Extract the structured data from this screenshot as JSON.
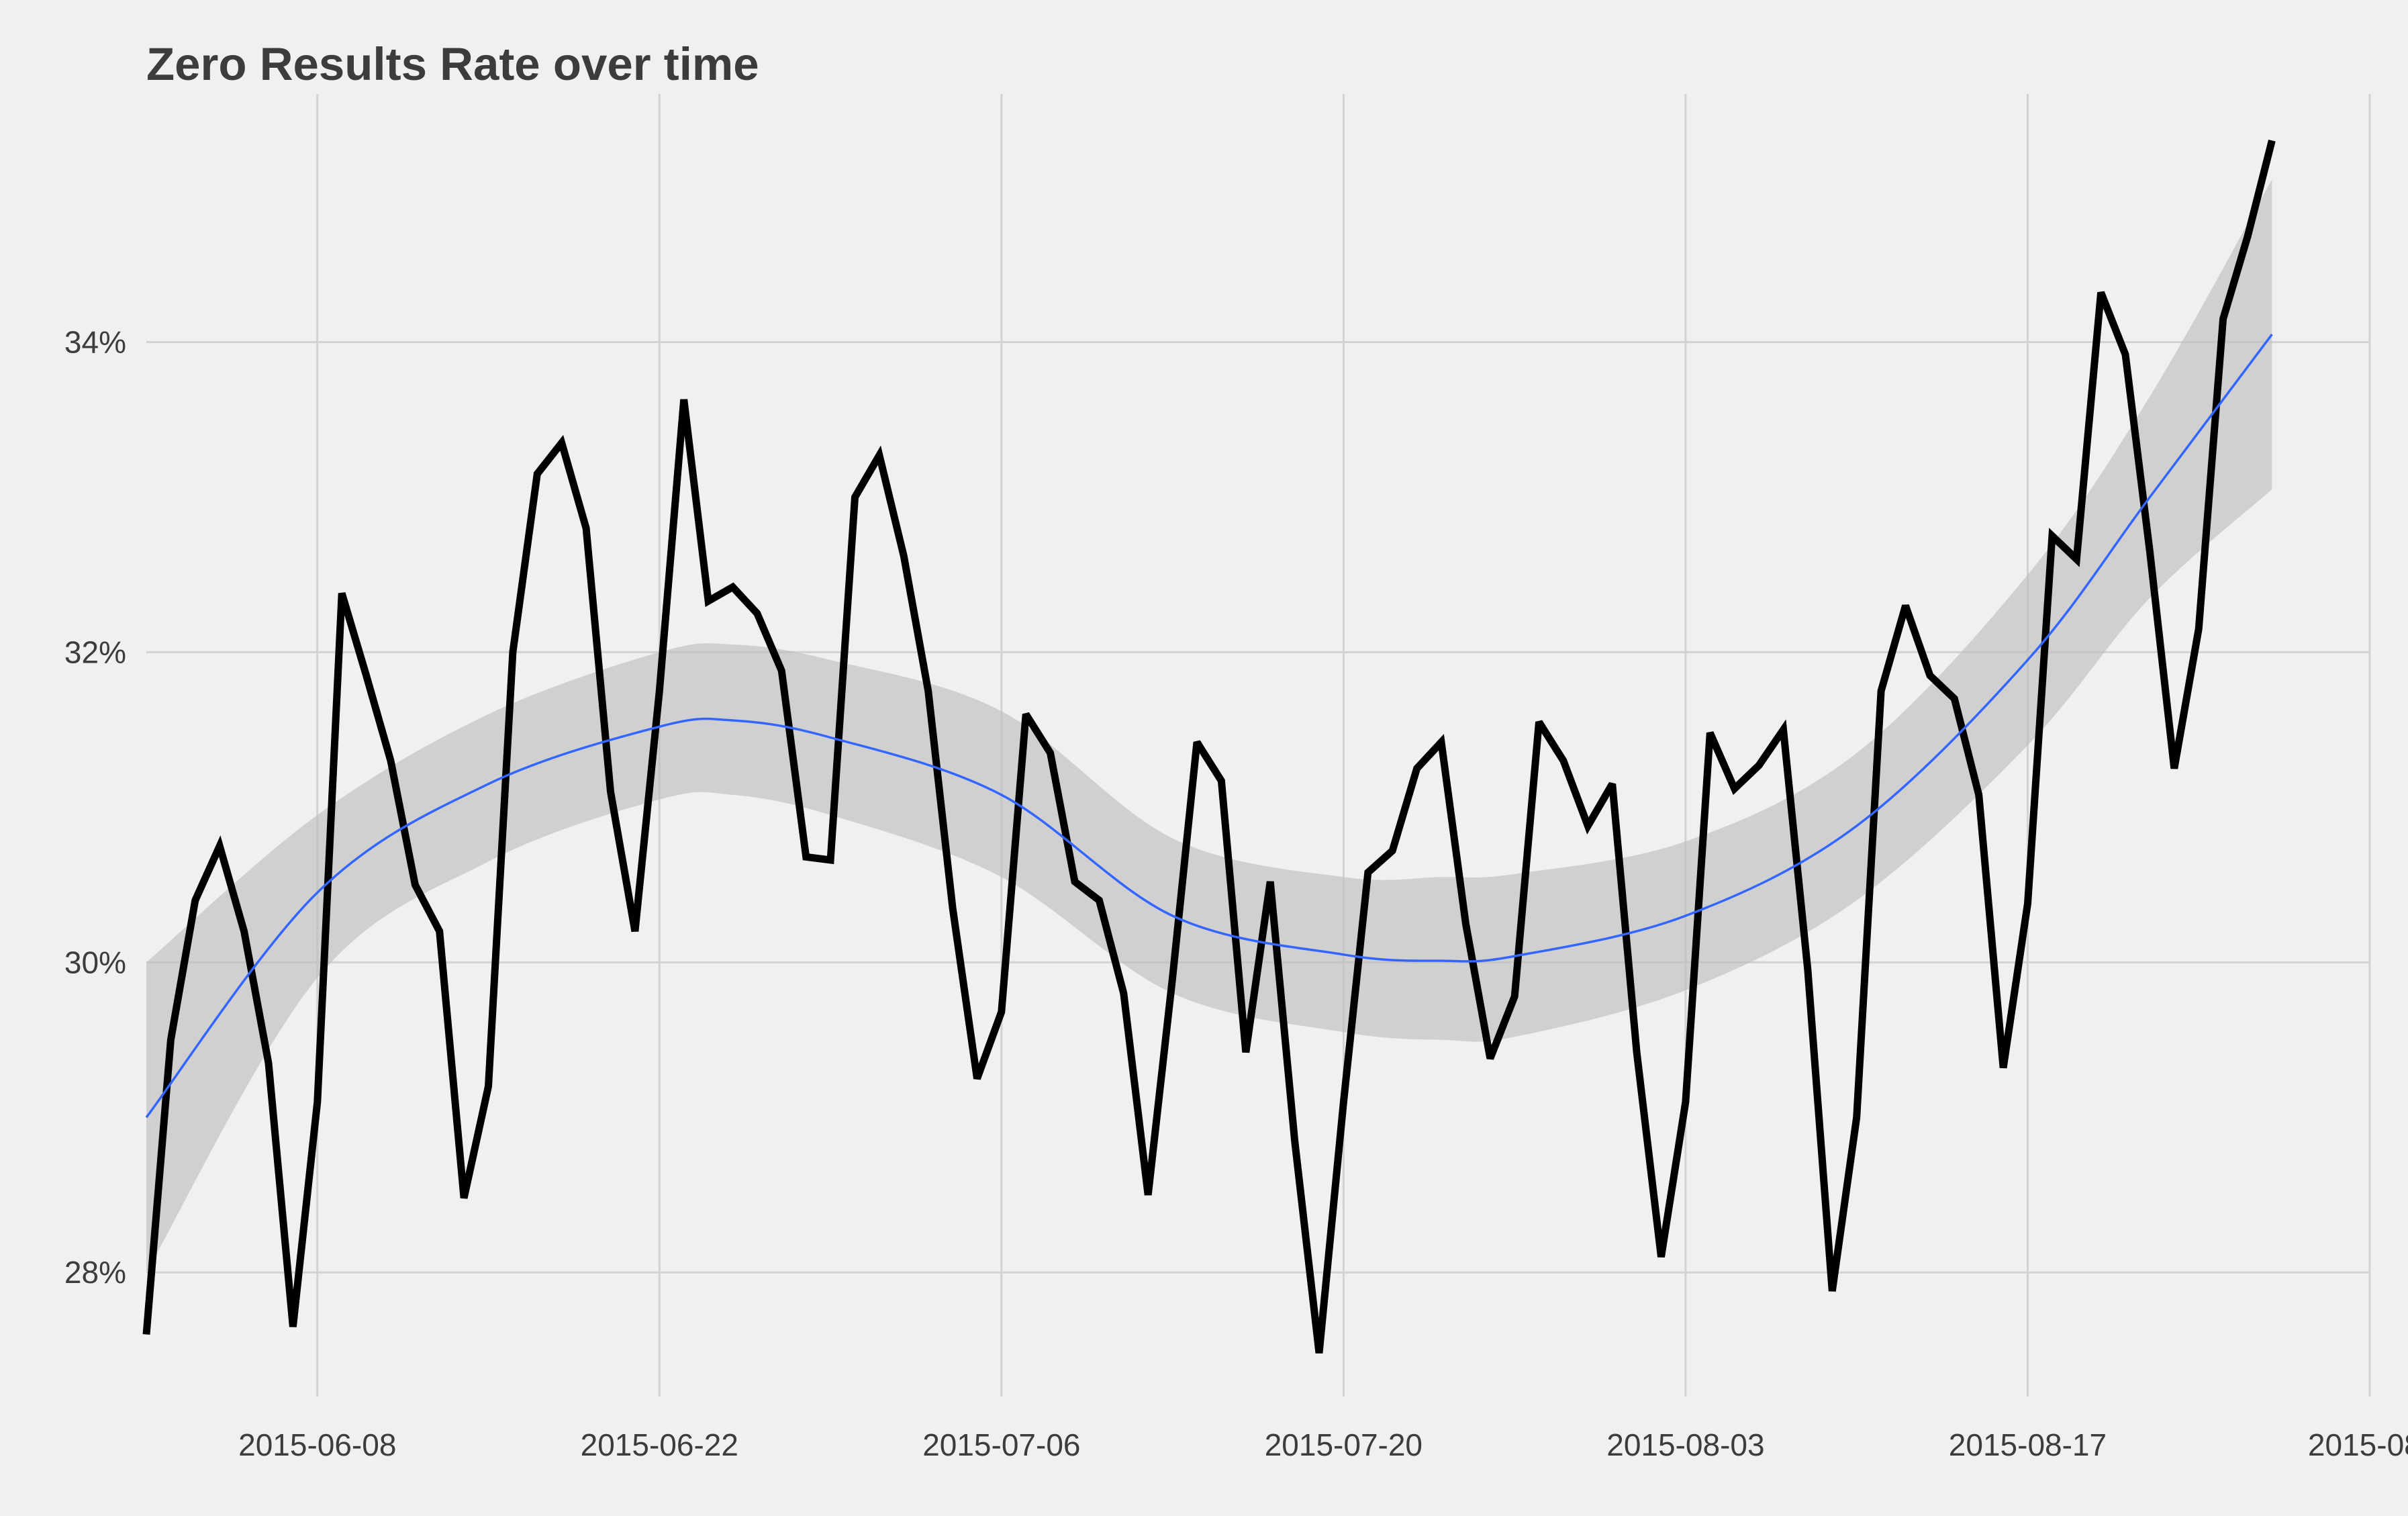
{
  "chart_data": {
    "type": "line",
    "title": "Zero Results Rate over time",
    "xlabel": "",
    "ylabel": "",
    "x_tick_labels": [
      "2015-06-08",
      "2015-06-22",
      "2015-07-06",
      "2015-07-20",
      "2015-08-03",
      "2015-08-17",
      "2015-08-"
    ],
    "y_tick_labels": [
      "28%",
      "30%",
      "32%",
      "34%"
    ],
    "xlim": [
      "2015-06-01",
      "2015-08-31"
    ],
    "ylim": [
      27.2,
      35.6
    ],
    "grid": true,
    "legend": "none",
    "colors": {
      "background": "#f0f0f0",
      "grid": "#d2d2d2",
      "series": "#000000",
      "smooth": "#3366ff",
      "band": "#bebebe"
    },
    "series": [
      {
        "values": [
          [
            "2015-06-01",
            27.6
          ],
          [
            "2015-06-02",
            29.5
          ],
          [
            "2015-06-03",
            30.4
          ],
          [
            "2015-06-04",
            30.75
          ],
          [
            "2015-06-05",
            30.2
          ],
          [
            "2015-06-06",
            29.35
          ],
          [
            "2015-06-07",
            27.65
          ],
          [
            "2015-06-08",
            29.1
          ],
          [
            "2015-06-09",
            32.38
          ],
          [
            "2015-06-10",
            31.85
          ],
          [
            "2015-06-11",
            31.3
          ],
          [
            "2015-06-12",
            30.5
          ],
          [
            "2015-06-13",
            30.2
          ],
          [
            "2015-06-14",
            28.48
          ],
          [
            "2015-06-15",
            29.2
          ],
          [
            "2015-06-16",
            32.0
          ],
          [
            "2015-06-17",
            33.15
          ],
          [
            "2015-06-18",
            33.35
          ],
          [
            "2015-06-19",
            32.8
          ],
          [
            "2015-06-20",
            31.1
          ],
          [
            "2015-06-21",
            30.2
          ],
          [
            "2015-06-22",
            31.75
          ],
          [
            "2015-06-23",
            33.63
          ],
          [
            "2015-06-24",
            32.33
          ],
          [
            "2015-06-25",
            32.42
          ],
          [
            "2015-06-26",
            32.25
          ],
          [
            "2015-06-27",
            31.88
          ],
          [
            "2015-06-28",
            30.68
          ],
          [
            "2015-06-29",
            30.66
          ],
          [
            "2015-06-30",
            33.0
          ],
          [
            "2015-07-01",
            33.27
          ],
          [
            "2015-07-02",
            32.62
          ],
          [
            "2015-07-03",
            31.75
          ],
          [
            "2015-07-04",
            30.35
          ],
          [
            "2015-07-05",
            29.25
          ],
          [
            "2015-07-06",
            29.68
          ],
          [
            "2015-07-07",
            31.6
          ],
          [
            "2015-07-08",
            31.35
          ],
          [
            "2015-07-09",
            30.52
          ],
          [
            "2015-07-10",
            30.4
          ],
          [
            "2015-07-11",
            29.8
          ],
          [
            "2015-07-12",
            28.5
          ],
          [
            "2015-07-13",
            29.9
          ],
          [
            "2015-07-14",
            31.42
          ],
          [
            "2015-07-15",
            31.17
          ],
          [
            "2015-07-16",
            29.42
          ],
          [
            "2015-07-17",
            30.52
          ],
          [
            "2015-07-18",
            28.85
          ],
          [
            "2015-07-19",
            27.48
          ],
          [
            "2015-07-20",
            29.1
          ],
          [
            "2015-07-21",
            30.58
          ],
          [
            "2015-07-22",
            30.72
          ],
          [
            "2015-07-23",
            31.25
          ],
          [
            "2015-07-24",
            31.42
          ],
          [
            "2015-07-25",
            30.25
          ],
          [
            "2015-07-26",
            29.38
          ],
          [
            "2015-07-27",
            29.78
          ],
          [
            "2015-07-28",
            31.55
          ],
          [
            "2015-07-29",
            31.3
          ],
          [
            "2015-07-30",
            30.88
          ],
          [
            "2015-07-31",
            31.15
          ],
          [
            "2015-08-01",
            29.42
          ],
          [
            "2015-08-02",
            28.1
          ],
          [
            "2015-08-03",
            29.1
          ],
          [
            "2015-08-04",
            31.48
          ],
          [
            "2015-08-05",
            31.12
          ],
          [
            "2015-08-06",
            31.27
          ],
          [
            "2015-08-07",
            31.5
          ],
          [
            "2015-08-08",
            29.95
          ],
          [
            "2015-08-09",
            27.88
          ],
          [
            "2015-08-10",
            29.0
          ],
          [
            "2015-08-11",
            31.75
          ],
          [
            "2015-08-12",
            32.3
          ],
          [
            "2015-08-13",
            31.85
          ],
          [
            "2015-08-14",
            31.7
          ],
          [
            "2015-08-15",
            31.08
          ],
          [
            "2015-08-16",
            29.32
          ],
          [
            "2015-08-17",
            30.38
          ],
          [
            "2015-08-18",
            32.75
          ],
          [
            "2015-08-19",
            32.6
          ],
          [
            "2015-08-20",
            34.32
          ],
          [
            "2015-08-21",
            33.92
          ],
          [
            "2015-08-22",
            32.65
          ],
          [
            "2015-08-23",
            31.25
          ],
          [
            "2015-08-24",
            32.15
          ],
          [
            "2015-08-25",
            34.15
          ],
          [
            "2015-08-26",
            34.68
          ],
          [
            "2015-08-27",
            35.3
          ]
        ]
      }
    ],
    "smooth": {
      "fit": [
        [
          "2015-06-01",
          29.0
        ],
        [
          "2015-06-08",
          30.45
        ],
        [
          "2015-06-15",
          31.15
        ],
        [
          "2015-06-22",
          31.52
        ],
        [
          "2015-06-25",
          31.56
        ],
        [
          "2015-06-29",
          31.45
        ],
        [
          "2015-07-06",
          31.08
        ],
        [
          "2015-07-13",
          30.3
        ],
        [
          "2015-07-20",
          30.05
        ],
        [
          "2015-07-24",
          30.01
        ],
        [
          "2015-07-27",
          30.04
        ],
        [
          "2015-08-03",
          30.3
        ],
        [
          "2015-08-10",
          30.88
        ],
        [
          "2015-08-17",
          31.95
        ],
        [
          "2015-08-22",
          33.0
        ],
        [
          "2015-08-27",
          34.05
        ]
      ],
      "band_upper": [
        [
          "2015-06-01",
          30.0
        ],
        [
          "2015-06-08",
          30.95
        ],
        [
          "2015-06-15",
          31.6
        ],
        [
          "2015-06-22",
          32.0
        ],
        [
          "2015-06-25",
          32.05
        ],
        [
          "2015-06-29",
          31.95
        ],
        [
          "2015-07-06",
          31.62
        ],
        [
          "2015-07-13",
          30.8
        ],
        [
          "2015-07-20",
          30.55
        ],
        [
          "2015-07-24",
          30.55
        ],
        [
          "2015-07-27",
          30.57
        ],
        [
          "2015-08-03",
          30.78
        ],
        [
          "2015-08-10",
          31.35
        ],
        [
          "2015-08-17",
          32.5
        ],
        [
          "2015-08-22",
          33.65
        ],
        [
          "2015-08-27",
          35.05
        ]
      ],
      "band_lower": [
        [
          "2015-06-01",
          28.0
        ],
        [
          "2015-06-08",
          29.9
        ],
        [
          "2015-06-15",
          30.65
        ],
        [
          "2015-06-22",
          31.05
        ],
        [
          "2015-06-25",
          31.08
        ],
        [
          "2015-06-29",
          30.95
        ],
        [
          "2015-07-06",
          30.55
        ],
        [
          "2015-07-13",
          29.8
        ],
        [
          "2015-07-20",
          29.55
        ],
        [
          "2015-07-24",
          29.5
        ],
        [
          "2015-07-27",
          29.52
        ],
        [
          "2015-08-03",
          29.82
        ],
        [
          "2015-08-10",
          30.4
        ],
        [
          "2015-08-17",
          31.4
        ],
        [
          "2015-08-22",
          32.35
        ],
        [
          "2015-08-27",
          33.05
        ]
      ]
    }
  }
}
